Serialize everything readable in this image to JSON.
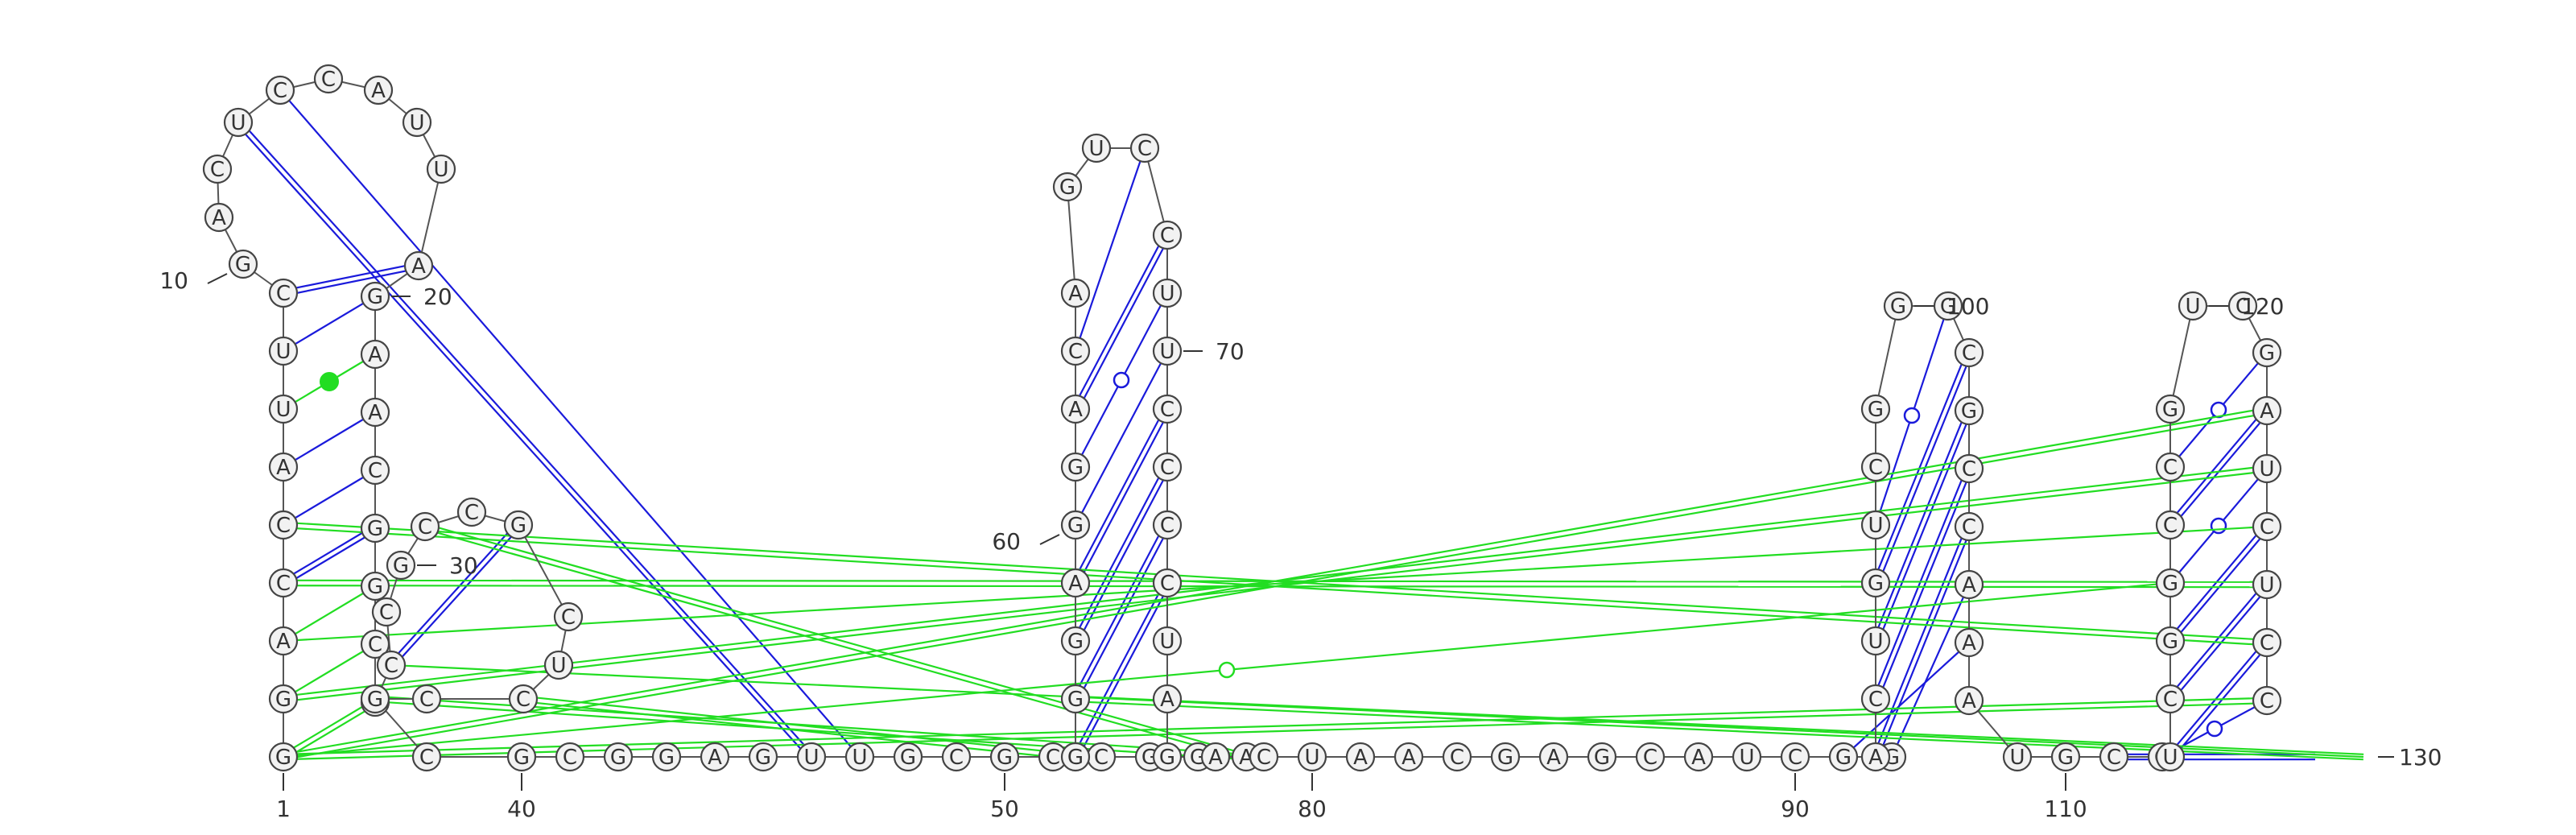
{
  "diagram": {
    "type": "rna-secondary-structure",
    "colors": {
      "canonical_pair": "#1a1adb",
      "noncanonical_pair": "#22dd22",
      "backbone": "#555555",
      "nucleotide_fill": "#f2f2f2",
      "nucleotide_stroke": "#444444"
    }
  },
  "nucleotides": [
    "G",
    "G",
    "A",
    "C",
    "C",
    "A",
    "U",
    "U",
    "C",
    "G",
    "A",
    "C",
    "U",
    "C",
    "C",
    "A",
    "U",
    "U",
    "A",
    "G",
    "A",
    "A",
    "C",
    "G",
    "G",
    "C",
    "U",
    "C",
    "C",
    "G",
    "C",
    "C",
    "G",
    "C",
    "U",
    "C",
    "C",
    "G",
    "C",
    "G",
    "C",
    "G",
    "G",
    "A",
    "G",
    "U",
    "U",
    "G",
    "C",
    "G",
    "C",
    "C",
    "G",
    "G",
    "A",
    "G",
    "G",
    "G",
    "A",
    "G",
    "G",
    "A",
    "C",
    "A",
    "G",
    "U",
    "C",
    "C",
    "U",
    "U",
    "C",
    "C",
    "C",
    "C",
    "U",
    "A",
    "G",
    "A",
    "C",
    "U",
    "A",
    "A",
    "C",
    "G",
    "A",
    "G",
    "C",
    "A",
    "U",
    "C",
    "G",
    "G",
    "A",
    "C",
    "U",
    "G",
    "U",
    "C",
    "G",
    "G",
    "G",
    "C",
    "G",
    "C",
    "C",
    "A",
    "A",
    "A",
    "U",
    "G",
    "C",
    "G",
    "U",
    "C",
    "G",
    "G",
    "C",
    "C",
    "G",
    "U",
    "C",
    "G",
    "A",
    "U",
    "C",
    "U",
    "C",
    "C"
  ],
  "numbering": [
    {
      "n": 1,
      "label": "1"
    },
    {
      "n": 10,
      "label": "10"
    },
    {
      "n": 20,
      "label": "20"
    },
    {
      "n": 30,
      "label": "30"
    },
    {
      "n": 40,
      "label": "40"
    },
    {
      "n": 50,
      "label": "50"
    },
    {
      "n": 60,
      "label": "60"
    },
    {
      "n": 70,
      "label": "70"
    },
    {
      "n": 80,
      "label": "80"
    },
    {
      "n": 90,
      "label": "90"
    },
    {
      "n": 100,
      "label": "100"
    },
    {
      "n": 110,
      "label": "110"
    },
    {
      "n": 120,
      "label": "120"
    },
    {
      "n": 130,
      "label": "130"
    }
  ],
  "pairs": [
    {
      "i": 1,
      "j": 27,
      "type": "wc",
      "color": "green"
    },
    {
      "i": 2,
      "j": 26,
      "type": "single",
      "color": "green"
    },
    {
      "i": 3,
      "j": 25,
      "type": "single",
      "color": "green"
    },
    {
      "i": 4,
      "j": 24,
      "type": "wc",
      "color": "blue"
    },
    {
      "i": 5,
      "j": 23,
      "type": "single",
      "color": "blue"
    },
    {
      "i": 6,
      "j": 22,
      "type": "single",
      "color": "blue"
    },
    {
      "i": 7,
      "j": 21,
      "type": "dot",
      "color": "green"
    },
    {
      "i": 8,
      "j": 20,
      "type": "single",
      "color": "blue"
    },
    {
      "i": 9,
      "j": 19,
      "type": "wc",
      "color": "blue"
    },
    {
      "i": 28,
      "j": 33,
      "type": "wc",
      "color": "blue"
    },
    {
      "i": 56,
      "j": 74,
      "type": "wc",
      "color": "blue"
    },
    {
      "i": 57,
      "j": 73,
      "type": "wc",
      "color": "blue"
    },
    {
      "i": 58,
      "j": 72,
      "type": "wc",
      "color": "blue"
    },
    {
      "i": 59,
      "j": 71,
      "type": "wc",
      "color": "blue"
    },
    {
      "i": 60,
      "j": 70,
      "type": "single",
      "color": "blue"
    },
    {
      "i": 61,
      "j": 69,
      "type": "circle",
      "color": "blue"
    },
    {
      "i": 62,
      "j": 68,
      "type": "wc",
      "color": "blue"
    },
    {
      "i": 63,
      "j": 67,
      "type": "single",
      "color": "blue"
    },
    {
      "i": 91,
      "j": 107,
      "type": "single",
      "color": "blue"
    },
    {
      "i": 92,
      "j": 106,
      "type": "single",
      "color": "blue"
    },
    {
      "i": 93,
      "j": 105,
      "type": "wc",
      "color": "blue"
    },
    {
      "i": 94,
      "j": 104,
      "type": "wc",
      "color": "blue"
    },
    {
      "i": 95,
      "j": 103,
      "type": "wc",
      "color": "blue"
    },
    {
      "i": 96,
      "j": 102,
      "type": "wc",
      "color": "blue"
    },
    {
      "i": 97,
      "j": 101,
      "type": "circle",
      "color": "blue"
    },
    {
      "i": 111,
      "j": 129,
      "type": "wc",
      "color": "blue"
    },
    {
      "i": 112,
      "j": 128,
      "type": "circle",
      "color": "blue"
    },
    {
      "i": 113,
      "j": 127,
      "type": "wc",
      "color": "blue"
    },
    {
      "i": 114,
      "j": 126,
      "type": "wc",
      "color": "blue"
    },
    {
      "i": 115,
      "j": 125,
      "type": "wc",
      "color": "blue"
    },
    {
      "i": 116,
      "j": 124,
      "type": "circle",
      "color": "blue"
    },
    {
      "i": 117,
      "j": 123,
      "type": "wc",
      "color": "blue"
    },
    {
      "i": 118,
      "j": 122,
      "type": "circle",
      "color": "blue"
    },
    {
      "i": 13,
      "j": 46,
      "type": "wc",
      "color": "blue"
    },
    {
      "i": 14,
      "j": 47,
      "type": "single",
      "color": "blue"
    },
    {
      "i": 1,
      "j": 123,
      "type": "wc",
      "color": "green"
    },
    {
      "i": 2,
      "j": 124,
      "type": "wc",
      "color": "green"
    },
    {
      "i": 3,
      "j": 125,
      "type": "single",
      "color": "green"
    },
    {
      "i": 4,
      "j": 126,
      "type": "wc",
      "color": "green"
    },
    {
      "i": 5,
      "j": 127,
      "type": "wc",
      "color": "green"
    },
    {
      "i": 1,
      "j": 128,
      "type": "wc",
      "color": "green"
    },
    {
      "i": 1,
      "j": 116,
      "type": "circle",
      "color": "green"
    },
    {
      "i": 31,
      "j": 55,
      "type": "wc",
      "color": "green"
    },
    {
      "i": 36,
      "j": 56,
      "type": "wc",
      "color": "green"
    },
    {
      "i": 38,
      "j": 55,
      "type": "wc",
      "color": "green"
    },
    {
      "i": 57,
      "j": 130,
      "type": "wc",
      "color": "green"
    },
    {
      "i": 28,
      "j": 130,
      "type": "single",
      "color": "green"
    }
  ]
}
